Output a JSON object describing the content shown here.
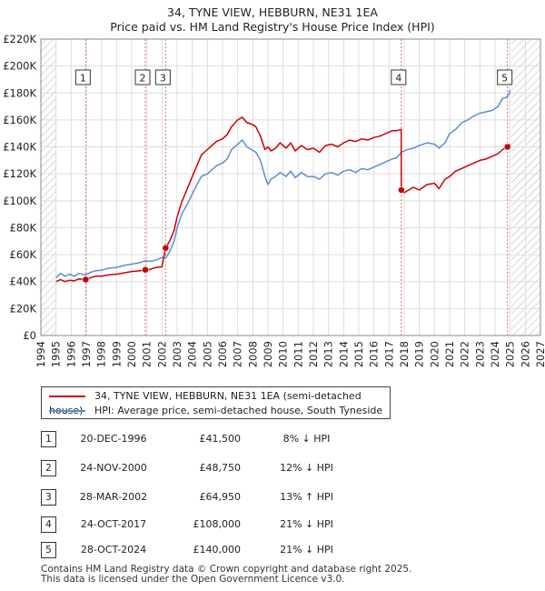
{
  "title_line1": "34, TYNE VIEW, HEBBURN, NE31 1EA",
  "title_line2": "Price paid vs. HM Land Registry's House Price Index (HPI)",
  "colors": {
    "property": "#cc0000",
    "hpi": "#5b8fd0",
    "marker_line": "#e07070",
    "grid": "#dddddd",
    "hatch": "#aaaaaa"
  },
  "legend": {
    "property_label": "34, TYNE VIEW, HEBBURN, NE31 1EA (semi-detached house)",
    "hpi_label": "HPI: Average price, semi-detached house, South Tyneside"
  },
  "transactions": [
    {
      "num": "1",
      "date": "20-DEC-1996",
      "price": "£41,500",
      "hpi": "8% ↓ HPI"
    },
    {
      "num": "2",
      "date": "24-NOV-2000",
      "price": "£48,750",
      "hpi": "12% ↓ HPI"
    },
    {
      "num": "3",
      "date": "28-MAR-2002",
      "price": "£64,950",
      "hpi": "13% ↑ HPI"
    },
    {
      "num": "4",
      "date": "24-OCT-2017",
      "price": "£108,000",
      "hpi": "21% ↓ HPI"
    },
    {
      "num": "5",
      "date": "28-OCT-2024",
      "price": "£140,000",
      "hpi": "21% ↓ HPI"
    }
  ],
  "footer_line1": "Contains HM Land Registry data © Crown copyright and database right 2025.",
  "footer_line2": "This data is licensed under the Open Government Licence v3.0.",
  "chart_data": {
    "type": "line",
    "title": "34, TYNE VIEW, HEBBURN, NE31 1EA - Price paid vs. HM Land Registry's House Price Index (HPI)",
    "xlabel": "",
    "ylabel": "",
    "xlim": [
      1994,
      2027
    ],
    "ylim": [
      0,
      220000
    ],
    "yticks": [
      0,
      20000,
      40000,
      60000,
      80000,
      100000,
      120000,
      140000,
      160000,
      180000,
      200000,
      220000
    ],
    "ytick_labels": [
      "£0",
      "£20K",
      "£40K",
      "£60K",
      "£80K",
      "£100K",
      "£120K",
      "£140K",
      "£160K",
      "£180K",
      "£200K",
      "£220K"
    ],
    "xticks": [
      1994,
      1995,
      1996,
      1997,
      1998,
      1999,
      2000,
      2001,
      2002,
      2003,
      2004,
      2005,
      2006,
      2007,
      2008,
      2009,
      2010,
      2011,
      2012,
      2013,
      2014,
      2015,
      2016,
      2017,
      2018,
      2019,
      2020,
      2021,
      2022,
      2023,
      2024,
      2025,
      2026,
      2027
    ],
    "hatched_before": 1995.0,
    "hatched_after": 2025.1,
    "series": [
      {
        "name": "HPI: Average price, semi-detached house, South Tyneside",
        "x": [
          1995.0,
          1995.3,
          1995.6,
          1995.9,
          1996.2,
          1996.5,
          1996.96,
          1997.3,
          1997.6,
          1998.0,
          1998.5,
          1999.0,
          1999.5,
          2000.0,
          2000.5,
          2000.9,
          2001.2,
          2001.6,
          2002.0,
          2002.24,
          2002.5,
          2002.8,
          2003.0,
          2003.3,
          2003.6,
          2004.0,
          2004.3,
          2004.6,
          2005.0,
          2005.3,
          2005.6,
          2006.0,
          2006.3,
          2006.6,
          2007.0,
          2007.3,
          2007.6,
          2007.9,
          2008.2,
          2008.5,
          2008.8,
          2009.0,
          2009.2,
          2009.5,
          2009.8,
          2010.2,
          2010.5,
          2010.8,
          2011.2,
          2011.6,
          2012.0,
          2012.4,
          2012.8,
          2013.2,
          2013.6,
          2014.0,
          2014.4,
          2014.8,
          2015.2,
          2015.6,
          2016.0,
          2016.4,
          2016.8,
          2017.2,
          2017.5,
          2017.81,
          2018.2,
          2018.6,
          2019.0,
          2019.5,
          2020.0,
          2020.3,
          2020.7,
          2021.0,
          2021.4,
          2021.8,
          2022.2,
          2022.6,
          2023.0,
          2023.4,
          2023.8,
          2024.2,
          2024.5,
          2024.82,
          2025.0
        ],
        "y": [
          43000,
          46000,
          44000,
          45500,
          44000,
          46000,
          45000,
          47000,
          48000,
          48500,
          50000,
          50500,
          52000,
          53000,
          54000,
          55500,
          55000,
          56000,
          58000,
          57500,
          62000,
          70000,
          80000,
          90000,
          96000,
          105000,
          112000,
          118000,
          120000,
          123000,
          126000,
          128000,
          131000,
          138000,
          142000,
          145000,
          140000,
          138000,
          136000,
          130000,
          118000,
          112000,
          116000,
          118000,
          121000,
          118000,
          122000,
          117000,
          121000,
          118000,
          118000,
          116000,
          120000,
          121000,
          119000,
          122000,
          123000,
          121000,
          124000,
          123000,
          125000,
          127000,
          129000,
          131000,
          132000,
          136000,
          138000,
          139000,
          141000,
          143000,
          142000,
          139000,
          143000,
          150000,
          153000,
          158000,
          160000,
          163000,
          165000,
          166000,
          167000,
          170000,
          176000,
          177000,
          182000
        ]
      },
      {
        "name": "34, TYNE VIEW, HEBBURN, NE31 1EA (semi-detached house)",
        "x": [
          1995.0,
          1995.3,
          1995.6,
          1995.9,
          1996.2,
          1996.5,
          1996.96,
          1997.3,
          1997.6,
          1998.0,
          1998.5,
          1999.0,
          1999.5,
          2000.0,
          2000.5,
          2000.9,
          2001.2,
          2001.6,
          2002.0,
          2002.24,
          2002.5,
          2002.8,
          2003.0,
          2003.3,
          2003.6,
          2004.0,
          2004.3,
          2004.6,
          2005.0,
          2005.3,
          2005.6,
          2006.0,
          2006.3,
          2006.6,
          2007.0,
          2007.3,
          2007.6,
          2007.9,
          2008.2,
          2008.5,
          2008.8,
          2009.0,
          2009.2,
          2009.5,
          2009.8,
          2010.2,
          2010.5,
          2010.8,
          2011.2,
          2011.6,
          2012.0,
          2012.4,
          2012.8,
          2013.2,
          2013.6,
          2014.0,
          2014.4,
          2014.8,
          2015.2,
          2015.6,
          2016.0,
          2016.4,
          2016.8,
          2017.2,
          2017.5,
          2017.8,
          2017.81,
          2018.0,
          2018.3,
          2018.6,
          2019.0,
          2019.5,
          2020.0,
          2020.3,
          2020.7,
          2021.0,
          2021.4,
          2021.8,
          2022.2,
          2022.6,
          2023.0,
          2023.4,
          2023.8,
          2024.2,
          2024.5,
          2024.82,
          2025.0
        ],
        "y": [
          40000,
          41500,
          40000,
          41000,
          40500,
          42000,
          41500,
          43000,
          44000,
          44000,
          45000,
          45500,
          46500,
          47500,
          48000,
          48750,
          49000,
          50500,
          51000,
          64950,
          70000,
          78000,
          88000,
          99000,
          107000,
          118000,
          126000,
          134000,
          138000,
          141000,
          144000,
          146000,
          149000,
          155000,
          160000,
          162000,
          158000,
          157000,
          155000,
          148000,
          138000,
          140000,
          137000,
          139000,
          143000,
          139000,
          143000,
          137000,
          141000,
          138000,
          139000,
          136000,
          141000,
          142000,
          140000,
          143000,
          145000,
          144000,
          146000,
          145000,
          147000,
          148000,
          150000,
          152000,
          152000,
          153000,
          108000,
          106000,
          108000,
          110000,
          108000,
          112000,
          113000,
          109000,
          116000,
          118000,
          122000,
          124000,
          126000,
          128000,
          130000,
          131000,
          133000,
          135000,
          138000,
          140000,
          142000
        ]
      }
    ],
    "sale_markers": [
      {
        "label": "1",
        "x": 1996.96,
        "y": 41500
      },
      {
        "label": "2",
        "x": 2000.9,
        "y": 48750
      },
      {
        "label": "3",
        "x": 2002.24,
        "y": 64950
      },
      {
        "label": "4",
        "x": 2017.81,
        "y": 108000
      },
      {
        "label": "5",
        "x": 2024.82,
        "y": 140000
      }
    ]
  }
}
